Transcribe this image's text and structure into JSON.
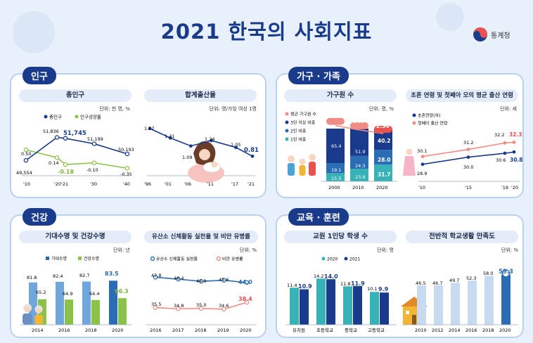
{
  "title": "2021 한국의 사회지표",
  "agency": "통계청",
  "colors": {
    "navy": "#1a3b8c",
    "blue": "#2a6db5",
    "teal": "#37b2b7",
    "lightblue": "#6fa6dc",
    "green": "#8bc34a",
    "salmon": "#f08c86",
    "red": "#e9534f",
    "pale": "#c7daef"
  },
  "sections": {
    "population": "인구",
    "household": "가구 · 가족",
    "health": "건강",
    "education": "교육 · 훈련"
  },
  "charts": {
    "total_population": {
      "title": "총인구",
      "unit": "단위: 천 명, %",
      "legend": [
        "총인구",
        "인구성장률"
      ],
      "x_labels": [
        "'10",
        "'20'21",
        "'30",
        "'40"
      ],
      "population_labels": [
        "49,554",
        "51,836",
        "51,745",
        "51,199",
        "50,193"
      ],
      "growth_labels": [
        "0.50",
        "0.14",
        "-0.18",
        "-0.10",
        "-0.35"
      ]
    },
    "fertility": {
      "title": "합계출산율",
      "unit": "단위: 명/가임 여성 1명",
      "x_labels": [
        "'96",
        "'01",
        "'06",
        "'11",
        "'17",
        "'21"
      ],
      "point_labels": [
        "1.57",
        "1.31",
        "1.09",
        "1.24",
        "1.05",
        "0.81"
      ]
    },
    "household": {
      "title": "가구원 수",
      "unit": "단위: 명, %",
      "legend": [
        "평균 가구원 수",
        "3인 이상 비중",
        "2인 비중",
        "1인 비중"
      ],
      "years": [
        "2000",
        "2010",
        "2020"
      ],
      "three_plus": [
        "65.4",
        "51.9",
        "40.2"
      ],
      "two": [
        "19.1",
        "24.3",
        "28.0"
      ],
      "one": [
        "15.5",
        "23.9",
        "31.7"
      ],
      "avg": [
        "3.12",
        "2.69",
        "2.34"
      ]
    },
    "marriage": {
      "title": "초혼 연령 및 첫째아 모의 평균 출산 연령",
      "unit": "단위: 세",
      "legend": [
        "초혼연령(여)",
        "첫째아 출산 연령"
      ],
      "x_labels": [
        "'10",
        "'15",
        "'19",
        "'20"
      ],
      "marriage_labels": [
        "28.9",
        "30.0",
        "30.6",
        "30.8"
      ],
      "birth_labels": [
        "30.1",
        "31.2",
        "32.2",
        "32.3"
      ]
    },
    "life_expectancy": {
      "title": "기대수명 및 건강수명",
      "unit": "단위: 년",
      "legend": [
        "기대수명",
        "건강수명"
      ],
      "years": [
        "2014",
        "2016",
        "2018",
        "2020"
      ],
      "life_labels": [
        "81.8",
        "82.4",
        "82.7",
        "83.5"
      ],
      "healthy_labels": [
        "65.2",
        "64.9",
        "64.4",
        "66.3"
      ]
    },
    "activity": {
      "title": "유산소 신체활동 실천율 및 비만 유병률",
      "unit": "단위: %",
      "legend": [
        "유산소 신체활동 실천율",
        "비만 유병률"
      ],
      "years": [
        "2016",
        "2017",
        "2018",
        "2019",
        "2020"
      ],
      "activity_labels": [
        "47.8",
        "46.4",
        "44.9",
        "45.6",
        "44.0"
      ],
      "obesity_labels": [
        "35.5",
        "34.8",
        "35.0",
        "34.6",
        "38.4"
      ]
    },
    "students": {
      "title": "교원 1인당 학생 수",
      "unit": "단위: 명",
      "legend": [
        "2020",
        "2021"
      ],
      "levels": [
        "유치원",
        "초등학교",
        "중학교",
        "고등학교"
      ],
      "y2020_labels": [
        "11.4",
        "14.2",
        "11.8",
        "10.1"
      ],
      "y2021_labels": [
        "10.9",
        "14.0",
        "11.9",
        "9.9"
      ]
    },
    "satisfaction": {
      "title": "전반적 학교생활 만족도",
      "unit": "단위: %",
      "years": [
        "2010",
        "2012",
        "2014",
        "2016",
        "2018",
        "2020"
      ],
      "labels": [
        "46.5",
        "46.7",
        "49.7",
        "52.3",
        "58.0",
        "59.3"
      ]
    }
  },
  "chart_data": [
    {
      "type": "line",
      "title": "총인구",
      "x": [
        "2010",
        "2020",
        "2021",
        "2030",
        "2040"
      ],
      "series": [
        {
          "name": "총인구",
          "values": [
            49554,
            51836,
            51745,
            51199,
            50193
          ]
        },
        {
          "name": "인구성장률",
          "values": [
            0.5,
            0.14,
            -0.18,
            -0.1,
            -0.35
          ]
        }
      ]
    },
    {
      "type": "line",
      "title": "합계출산율",
      "x": [
        1996,
        2001,
        2006,
        2011,
        2017,
        2021
      ],
      "series": [
        {
          "name": "합계출산율",
          "values": [
            1.57,
            1.31,
            1.09,
            1.24,
            1.05,
            0.81
          ]
        }
      ]
    },
    {
      "type": "bar",
      "title": "가구원 수",
      "categories": [
        "2000",
        "2010",
        "2020"
      ],
      "series": [
        {
          "name": "1인 비중",
          "values": [
            15.5,
            23.9,
            31.7
          ]
        },
        {
          "name": "2인 비중",
          "values": [
            19.1,
            24.3,
            28.0
          ]
        },
        {
          "name": "3인 이상 비중",
          "values": [
            65.4,
            51.9,
            40.2
          ]
        },
        {
          "name": "평균 가구원 수",
          "values": [
            3.12,
            2.69,
            2.34
          ]
        }
      ]
    },
    {
      "type": "line",
      "title": "초혼 연령 및 첫째아 모의 평균 출산 연령",
      "x": [
        2010,
        2015,
        2019,
        2020
      ],
      "series": [
        {
          "name": "초혼연령(여)",
          "values": [
            28.9,
            30.0,
            30.6,
            30.8
          ]
        },
        {
          "name": "첫째아 출산 연령",
          "values": [
            30.1,
            31.2,
            32.2,
            32.3
          ]
        }
      ]
    },
    {
      "type": "bar",
      "title": "기대수명 및 건강수명",
      "categories": [
        "2014",
        "2016",
        "2018",
        "2020"
      ],
      "series": [
        {
          "name": "기대수명",
          "values": [
            81.8,
            82.4,
            82.7,
            83.5
          ]
        },
        {
          "name": "건강수명",
          "values": [
            65.2,
            64.9,
            64.4,
            66.3
          ]
        }
      ]
    },
    {
      "type": "line",
      "title": "유산소 신체활동 실천율 및 비만 유병률",
      "x": [
        2016,
        2017,
        2018,
        2019,
        2020
      ],
      "series": [
        {
          "name": "유산소 신체활동 실천율",
          "values": [
            47.8,
            46.4,
            44.9,
            45.6,
            44.0
          ]
        },
        {
          "name": "비만 유병률",
          "values": [
            35.5,
            34.8,
            35.0,
            34.6,
            38.4
          ]
        }
      ]
    },
    {
      "type": "bar",
      "title": "교원 1인당 학생 수",
      "categories": [
        "유치원",
        "초등학교",
        "중학교",
        "고등학교"
      ],
      "series": [
        {
          "name": "2020",
          "values": [
            11.4,
            14.2,
            11.8,
            10.1
          ]
        },
        {
          "name": "2021",
          "values": [
            10.9,
            14.0,
            11.9,
            9.9
          ]
        }
      ]
    },
    {
      "type": "bar",
      "title": "전반적 학교생활 만족도",
      "categories": [
        "2010",
        "2012",
        "2014",
        "2016",
        "2018",
        "2020"
      ],
      "values": [
        46.5,
        46.7,
        49.7,
        52.3,
        58.0,
        59.3
      ]
    }
  ]
}
